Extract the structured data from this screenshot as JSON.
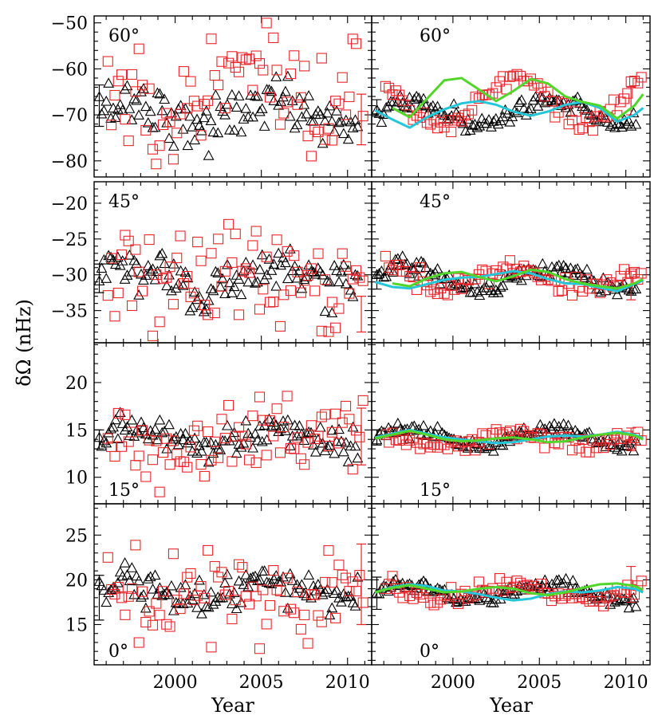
{
  "chart_data": {
    "type": "scatter",
    "xlabel": "Year",
    "ylabel": "δΩ (nHz)",
    "xlim": [
      1995.3,
      2011.4
    ],
    "x_ticks": [
      2000,
      2005,
      2010
    ],
    "colors": {
      "triangles": "#000000",
      "squares": "#e8262b",
      "fit_cyan": "#26c6d9",
      "fit_green": "#52d62c"
    },
    "rows": [
      {
        "label": "60°",
        "label_pos": "top-left",
        "ylim": [
          -83.5,
          -48.5
        ],
        "y_ticks": [
          -80,
          -70,
          -60,
          -50
        ],
        "tri_base": -69.5,
        "tri_amp": 2.5,
        "tri_noise_left": 2.8,
        "tri_noise_right": 0.9,
        "sq_base": -67.0,
        "sq_amp": 5.0,
        "sq_noise_left": 6.0,
        "sq_noise_right": 1.2,
        "errbars_left": [
          {
            "x": 1995.6,
            "y": -68.0,
            "e": 4.5,
            "color": "#000000"
          },
          {
            "x": 2010.8,
            "y": -71.0,
            "e": 5.5,
            "color": "#e8262b"
          }
        ],
        "errbars_right": [
          {
            "x": 1995.6,
            "y": -68.5,
            "e": 1.8,
            "color": "#000000"
          },
          {
            "x": 2010.3,
            "y": -67.0,
            "e": 3.0,
            "color": "#e8262b"
          }
        ],
        "fit_cyan": [
          [
            1995.5,
            -69.0
          ],
          [
            1996.5,
            -71.0
          ],
          [
            1997.5,
            -72.8
          ],
          [
            1998.5,
            -70.5
          ],
          [
            1999.5,
            -68.8
          ],
          [
            2000.5,
            -67.5
          ],
          [
            2001.5,
            -67.0
          ],
          [
            2002.5,
            -67.8
          ],
          [
            2003.5,
            -69.3
          ],
          [
            2004.5,
            -70.2
          ],
          [
            2005.5,
            -69.3
          ],
          [
            2006.5,
            -67.8
          ],
          [
            2007.5,
            -67.2
          ],
          [
            2008.5,
            -68.5
          ],
          [
            2009.5,
            -71.5
          ],
          [
            2010.5,
            -70.0
          ],
          [
            2011.0,
            -68.5
          ]
        ],
        "fit_green": [
          [
            1996.5,
            -68.5
          ],
          [
            1997.5,
            -70.5
          ],
          [
            1998.5,
            -66.5
          ],
          [
            1999.5,
            -62.5
          ],
          [
            2000.5,
            -62.0
          ],
          [
            2001.5,
            -64.5
          ],
          [
            2002.5,
            -67.0
          ],
          [
            2003.5,
            -64.8
          ],
          [
            2004.5,
            -62.2
          ],
          [
            2005.5,
            -63.2
          ],
          [
            2006.5,
            -66.0
          ],
          [
            2007.5,
            -67.2
          ],
          [
            2008.5,
            -68.0
          ],
          [
            2009.5,
            -70.8
          ],
          [
            2010.5,
            -68.0
          ],
          [
            2011.0,
            -65.5
          ]
        ]
      },
      {
        "label": "45°",
        "label_pos": "top-left",
        "ylim": [
          -39.5,
          -17.0
        ],
        "y_ticks": [
          -35,
          -30,
          -25,
          -20
        ],
        "tri_base": -30.5,
        "tri_amp": 1.5,
        "tri_noise_left": 1.6,
        "tri_noise_right": 0.6,
        "sq_base": -30.3,
        "sq_amp": 1.3,
        "sq_noise_left": 3.8,
        "sq_noise_right": 0.8,
        "errbars_left": [
          {
            "x": 1995.6,
            "y": -30.5,
            "e": 2.0,
            "color": "#000000"
          },
          {
            "x": 2010.8,
            "y": -35.5,
            "e": 2.5,
            "color": "#e8262b"
          }
        ],
        "errbars_right": [
          {
            "x": 1995.6,
            "y": -30.8,
            "e": 1.2,
            "color": "#000000"
          },
          {
            "x": 2010.3,
            "y": -31.5,
            "e": 2.0,
            "color": "#e8262b"
          }
        ],
        "fit_cyan": [
          [
            1995.5,
            -31.0
          ],
          [
            1996.5,
            -31.7
          ],
          [
            1997.5,
            -31.9
          ],
          [
            1998.5,
            -31.3
          ],
          [
            1999.5,
            -30.7
          ],
          [
            2000.5,
            -30.4
          ],
          [
            2001.5,
            -30.3
          ],
          [
            2002.5,
            -29.9
          ],
          [
            2003.5,
            -29.5
          ],
          [
            2004.5,
            -29.8
          ],
          [
            2005.5,
            -30.6
          ],
          [
            2006.5,
            -31.2
          ],
          [
            2007.5,
            -31.3
          ],
          [
            2008.5,
            -31.8
          ],
          [
            2009.5,
            -32.3
          ],
          [
            2010.5,
            -31.3
          ],
          [
            2011.0,
            -30.8
          ]
        ],
        "fit_green": [
          [
            1996.5,
            -31.2
          ],
          [
            1997.5,
            -31.6
          ],
          [
            1998.5,
            -30.5
          ],
          [
            1999.5,
            -29.8
          ],
          [
            2000.5,
            -29.6
          ],
          [
            2001.5,
            -30.3
          ],
          [
            2002.5,
            -30.9
          ],
          [
            2003.5,
            -30.2
          ],
          [
            2004.5,
            -29.3
          ],
          [
            2005.5,
            -29.6
          ],
          [
            2006.5,
            -30.6
          ],
          [
            2007.5,
            -31.2
          ],
          [
            2008.5,
            -31.6
          ],
          [
            2009.5,
            -31.9
          ],
          [
            2010.5,
            -31.2
          ],
          [
            2011.0,
            -30.6
          ]
        ]
      },
      {
        "label": "15°",
        "label_pos": "bottom-left",
        "ylim": [
          7.2,
          24.2
        ],
        "y_ticks": [
          10,
          15,
          20
        ],
        "tri_base": 14.2,
        "tri_amp": 0.9,
        "tri_noise_left": 0.8,
        "tri_noise_right": 0.35,
        "sq_base": 14.0,
        "sq_amp": 0.7,
        "sq_noise_left": 2.2,
        "sq_noise_right": 0.45,
        "errbars_left": [
          {
            "x": 1995.6,
            "y": 14.0,
            "e": 1.0,
            "color": "#000000"
          },
          {
            "x": 2010.8,
            "y": 14.3,
            "e": 3.0,
            "color": "#e8262b"
          }
        ],
        "errbars_right": [
          {
            "x": 1995.6,
            "y": 14.2,
            "e": 0.8,
            "color": "#000000"
          },
          {
            "x": 2010.3,
            "y": 14.0,
            "e": 1.2,
            "color": "#e8262b"
          }
        ],
        "fit_cyan": [
          [
            1995.5,
            14.2
          ],
          [
            1996.5,
            14.6
          ],
          [
            1997.5,
            15.0
          ],
          [
            1998.5,
            14.6
          ],
          [
            1999.5,
            14.2
          ],
          [
            2000.5,
            14.0
          ],
          [
            2001.5,
            13.8
          ],
          [
            2002.5,
            13.6
          ],
          [
            2003.5,
            13.7
          ],
          [
            2004.5,
            14.0
          ],
          [
            2005.5,
            14.3
          ],
          [
            2006.5,
            14.4
          ],
          [
            2007.5,
            14.3
          ],
          [
            2008.5,
            14.5
          ],
          [
            2009.5,
            14.8
          ],
          [
            2010.5,
            14.5
          ],
          [
            2011.0,
            14.1
          ]
        ],
        "fit_green": [
          [
            1995.5,
            14.1
          ],
          [
            1996.5,
            14.5
          ],
          [
            1997.5,
            14.9
          ],
          [
            1998.5,
            14.5
          ],
          [
            1999.5,
            14.0
          ],
          [
            2000.5,
            13.8
          ],
          [
            2001.5,
            13.9
          ],
          [
            2002.5,
            14.1
          ],
          [
            2003.5,
            14.2
          ],
          [
            2004.5,
            14.0
          ],
          [
            2005.5,
            13.7
          ],
          [
            2006.5,
            13.8
          ],
          [
            2007.5,
            14.2
          ],
          [
            2008.5,
            14.5
          ],
          [
            2009.5,
            14.7
          ],
          [
            2010.5,
            14.4
          ],
          [
            2011.0,
            14.0
          ]
        ]
      },
      {
        "label": "0°",
        "label_pos": "bottom-left",
        "ylim": [
          10.5,
          28.5
        ],
        "y_ticks": [
          15,
          20,
          25
        ],
        "tri_base": 18.7,
        "tri_amp": 0.9,
        "tri_noise_left": 1.0,
        "tri_noise_right": 0.4,
        "sq_base": 18.6,
        "sq_amp": 0.7,
        "sq_noise_left": 2.6,
        "sq_noise_right": 0.5,
        "errbars_left": [
          {
            "x": 1995.6,
            "y": 18.0,
            "e": 2.5,
            "color": "#000000"
          },
          {
            "x": 2010.8,
            "y": 19.5,
            "e": 4.5,
            "color": "#e8262b"
          }
        ],
        "errbars_right": [
          {
            "x": 1995.6,
            "y": 18.5,
            "e": 1.8,
            "color": "#000000"
          },
          {
            "x": 2010.3,
            "y": 19.5,
            "e": 2.0,
            "color": "#e8262b"
          }
        ],
        "fit_cyan": [
          [
            1995.5,
            18.6
          ],
          [
            1996.5,
            19.2
          ],
          [
            1997.5,
            19.5
          ],
          [
            1998.5,
            19.3
          ],
          [
            1999.5,
            18.8
          ],
          [
            2000.5,
            18.7
          ],
          [
            2001.5,
            18.4
          ],
          [
            2002.5,
            18.0
          ],
          [
            2003.5,
            17.7
          ],
          [
            2004.5,
            17.9
          ],
          [
            2005.5,
            18.4
          ],
          [
            2006.5,
            18.7
          ],
          [
            2007.5,
            18.6
          ],
          [
            2008.5,
            18.8
          ],
          [
            2009.5,
            19.2
          ],
          [
            2010.5,
            19.0
          ],
          [
            2011.0,
            18.6
          ]
        ],
        "fit_green": [
          [
            1995.5,
            18.6
          ],
          [
            1996.5,
            19.1
          ],
          [
            1997.5,
            19.4
          ],
          [
            1998.5,
            19.0
          ],
          [
            1999.5,
            18.6
          ],
          [
            2000.5,
            18.7
          ],
          [
            2001.5,
            19.0
          ],
          [
            2002.5,
            19.2
          ],
          [
            2003.5,
            19.0
          ],
          [
            2004.5,
            18.5
          ],
          [
            2005.5,
            18.3
          ],
          [
            2006.5,
            18.6
          ],
          [
            2007.5,
            19.1
          ],
          [
            2008.5,
            19.5
          ],
          [
            2009.5,
            19.6
          ],
          [
            2010.5,
            19.3
          ],
          [
            2011.0,
            18.9
          ]
        ]
      }
    ]
  }
}
